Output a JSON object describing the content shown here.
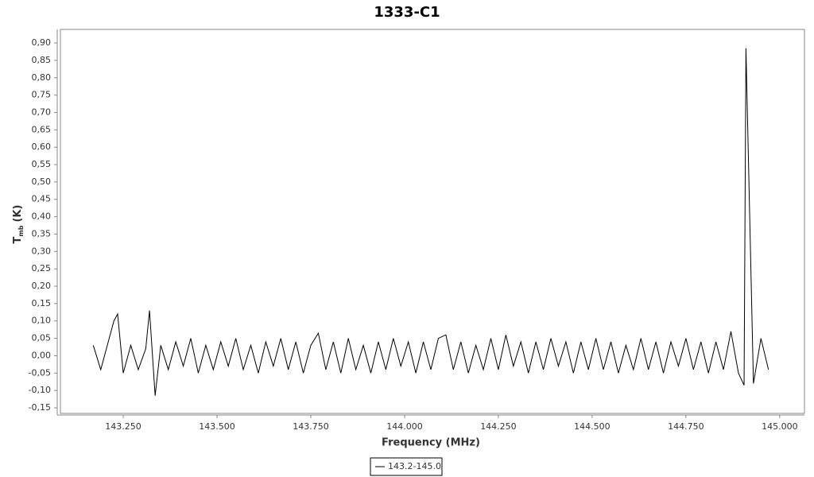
{
  "chart_data": {
    "type": "line",
    "title": "1333-C1",
    "x_label": "Frequency (MHz)",
    "y_label": "T",
    "y_label_sub": "mb",
    "y_label_unit": "(K)",
    "x": [
      143.17,
      143.19,
      143.21,
      143.225,
      143.235,
      143.25,
      143.27,
      143.29,
      143.31,
      143.32,
      143.335,
      143.35,
      143.37,
      143.39,
      143.41,
      143.43,
      143.45,
      143.47,
      143.49,
      143.51,
      143.53,
      143.55,
      143.57,
      143.59,
      143.61,
      143.63,
      143.65,
      143.67,
      143.69,
      143.71,
      143.73,
      143.75,
      143.77,
      143.79,
      143.81,
      143.83,
      143.85,
      143.87,
      143.89,
      143.91,
      143.93,
      143.95,
      143.97,
      143.99,
      144.01,
      144.03,
      144.05,
      144.07,
      144.09,
      144.11,
      144.13,
      144.15,
      144.17,
      144.19,
      144.21,
      144.23,
      144.25,
      144.27,
      144.29,
      144.31,
      144.33,
      144.35,
      144.37,
      144.39,
      144.41,
      144.43,
      144.45,
      144.47,
      144.49,
      144.51,
      144.53,
      144.55,
      144.57,
      144.59,
      144.61,
      144.63,
      144.65,
      144.67,
      144.69,
      144.71,
      144.73,
      144.75,
      144.77,
      144.79,
      144.81,
      144.83,
      144.85,
      144.87,
      144.89,
      144.905,
      144.91,
      144.93,
      144.95,
      144.97
    ],
    "series": [
      {
        "name": "143.2-145.0",
        "color": "#000000",
        "values": [
          0.03,
          -0.04,
          0.04,
          0.1,
          0.12,
          -0.05,
          0.03,
          -0.04,
          0.02,
          0.13,
          -0.115,
          0.03,
          -0.04,
          0.04,
          -0.03,
          0.05,
          -0.05,
          0.03,
          -0.04,
          0.04,
          -0.03,
          0.05,
          -0.04,
          0.03,
          -0.05,
          0.04,
          -0.03,
          0.05,
          -0.04,
          0.04,
          -0.05,
          0.03,
          0.065,
          -0.04,
          0.04,
          -0.05,
          0.05,
          -0.04,
          0.03,
          -0.05,
          0.04,
          -0.04,
          0.05,
          -0.03,
          0.04,
          -0.05,
          0.04,
          -0.04,
          0.05,
          0.06,
          -0.04,
          0.04,
          -0.05,
          0.03,
          -0.04,
          0.05,
          -0.04,
          0.06,
          -0.03,
          0.04,
          -0.05,
          0.04,
          -0.04,
          0.05,
          -0.03,
          0.04,
          -0.05,
          0.04,
          -0.04,
          0.05,
          -0.04,
          0.04,
          -0.05,
          0.03,
          -0.04,
          0.05,
          -0.04,
          0.04,
          -0.05,
          0.04,
          -0.03,
          0.05,
          -0.04,
          0.04,
          -0.05,
          0.04,
          -0.04,
          0.07,
          -0.05,
          -0.085,
          0.885,
          -0.08,
          0.05,
          -0.04
        ]
      }
    ],
    "xlim": [
      143.074,
      145.066
    ],
    "ylim": [
      -0.166,
      0.939
    ],
    "xticks": [
      {
        "value": 143.25,
        "label": "143.250"
      },
      {
        "value": 143.5,
        "label": "143.500"
      },
      {
        "value": 143.75,
        "label": "143.750"
      },
      {
        "value": 144,
        "label": "144.000"
      },
      {
        "value": 144.25,
        "label": "144.250"
      },
      {
        "value": 144.5,
        "label": "144.500"
      },
      {
        "value": 144.75,
        "label": "144.750"
      },
      {
        "value": 145,
        "label": "145.000"
      }
    ],
    "yticks": [
      {
        "value": 0.9,
        "label": "0,90"
      },
      {
        "value": 0.85,
        "label": "0,85"
      },
      {
        "value": 0.8,
        "label": "0,80"
      },
      {
        "value": 0.75,
        "label": "0,75"
      },
      {
        "value": 0.7,
        "label": "0,70"
      },
      {
        "value": 0.65,
        "label": "0,65"
      },
      {
        "value": 0.6,
        "label": "0,60"
      },
      {
        "value": 0.55,
        "label": "0,55"
      },
      {
        "value": 0.5,
        "label": "0,50"
      },
      {
        "value": 0.45,
        "label": "0,45"
      },
      {
        "value": 0.4,
        "label": "0,40"
      },
      {
        "value": 0.35,
        "label": "0,35"
      },
      {
        "value": 0.3,
        "label": "0,30"
      },
      {
        "value": 0.25,
        "label": "0,25"
      },
      {
        "value": 0.2,
        "label": "0,20"
      },
      {
        "value": 0.15,
        "label": "0,15"
      },
      {
        "value": 0.1,
        "label": "0,10"
      },
      {
        "value": 0.05,
        "label": "0,05"
      },
      {
        "value": 0,
        "label": "0,00"
      },
      {
        "value": -0.05,
        "label": "-0,05"
      },
      {
        "value": -0.1,
        "label": "-0,10"
      },
      {
        "value": -0.15,
        "label": "-0,15"
      }
    ],
    "grid": false,
    "legend": "bottom"
  }
}
